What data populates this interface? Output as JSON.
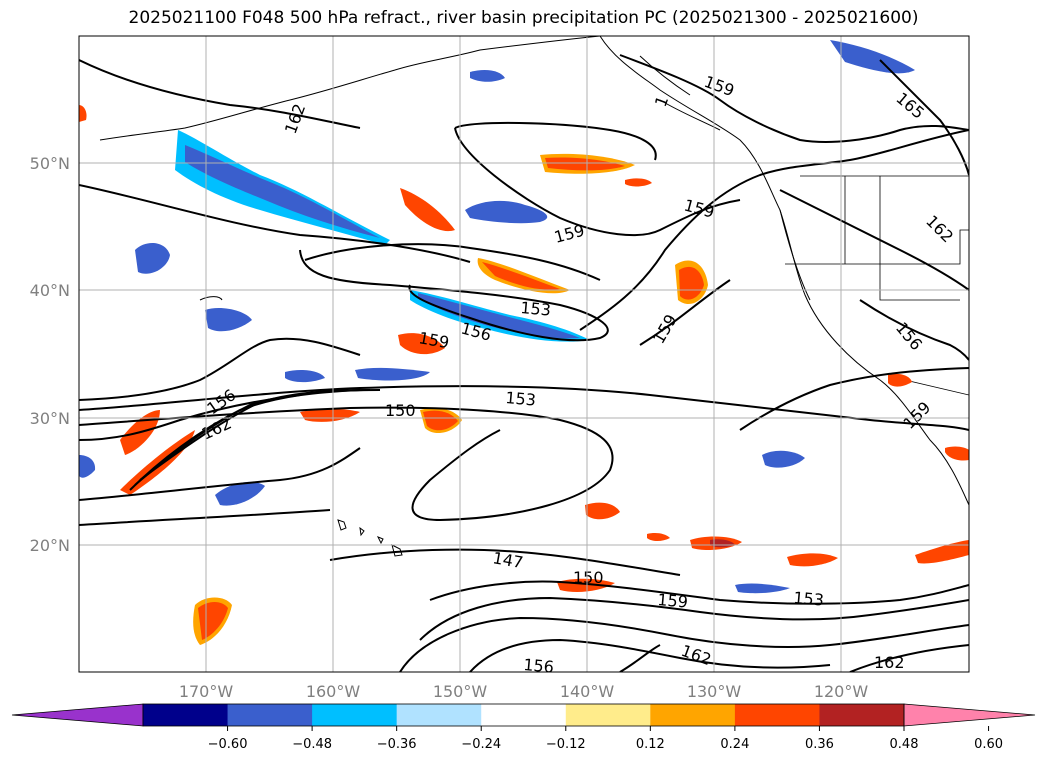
{
  "title": "2025021100 F048 500 hPa refract., river basin precipitation PC (2025021300 - 2025021600)",
  "map": {
    "lat_labels": [
      "50°N",
      "40°N",
      "30°N",
      "20°N"
    ],
    "lon_labels": [
      "170°W",
      "160°W",
      "150°W",
      "140°W",
      "130°W",
      "120°W"
    ],
    "grid": true,
    "extent": {
      "lon": [
        -180,
        -110
      ],
      "lat": [
        10,
        60
      ]
    }
  },
  "contours": {
    "levels": [
      147,
      150,
      153,
      156,
      159,
      162,
      165
    ],
    "labels": [
      {
        "text": "162",
        "rot": -70
      },
      {
        "text": "1",
        "rot": -70
      },
      {
        "text": "159",
        "rot": 20
      },
      {
        "text": "165",
        "rot": 40
      },
      {
        "text": "162",
        "rot": 45
      },
      {
        "text": "159",
        "rot": 15
      },
      {
        "text": "159",
        "rot": -15
      },
      {
        "text": "153",
        "rot": 5
      },
      {
        "text": "156",
        "rot": 15
      },
      {
        "text": "159",
        "rot": 10
      },
      {
        "text": "159",
        "rot": -60
      },
      {
        "text": "156",
        "rot": 50
      },
      {
        "text": "156",
        "rot": -35
      },
      {
        "text": "162",
        "rot": -25
      },
      {
        "text": "150",
        "rot": 0
      },
      {
        "text": "153",
        "rot": 5
      },
      {
        "text": "159",
        "rot": -45
      },
      {
        "text": "147",
        "rot": 10
      },
      {
        "text": "150",
        "rot": 0
      },
      {
        "text": "159",
        "rot": 5
      },
      {
        "text": "153",
        "rot": 5
      },
      {
        "text": "162",
        "rot": 20
      },
      {
        "text": "156",
        "rot": 5
      },
      {
        "text": "162",
        "rot": 0
      }
    ]
  },
  "colorbar": {
    "colors": [
      "#9932cc",
      "#00008b",
      "#3a5fcd",
      "#00bfff",
      "#b0e2ff",
      "#ffffff",
      "#ffec8b",
      "#ffa500",
      "#ff4500",
      "#b22222",
      "#ff82ab"
    ],
    "ticks": [
      "−0.60",
      "−0.48",
      "−0.36",
      "−0.24",
      "−0.12",
      "0.12",
      "0.24",
      "0.36",
      "0.48",
      "0.60"
    ],
    "extend": "both"
  }
}
